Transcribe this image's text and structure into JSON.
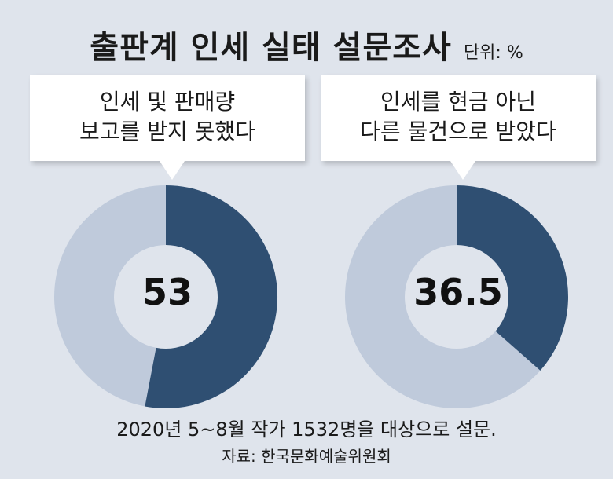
{
  "title": "출판계 인세 실태 설문조사",
  "unit": "단위: %",
  "colors": {
    "filled": "#2f4f72",
    "remainder": "#bfcadb",
    "hole": "#dfe4ec",
    "background": "#dfe4ec"
  },
  "chart_data": [
    {
      "type": "pie",
      "style": "donut",
      "label_lines": [
        "인세 및 판매량",
        "보고를 받지 못했다"
      ],
      "value": 53,
      "display": "53",
      "max": 100
    },
    {
      "type": "pie",
      "style": "donut",
      "label_lines": [
        "인세를 현금 아닌",
        "다른 물건으로 받았다"
      ],
      "value": 36.5,
      "display": "36.5",
      "max": 100
    }
  ],
  "note": "2020년 5~8월 작가 1532명을 대상으로 설문.",
  "source": "자료: 한국문화예술위원회"
}
